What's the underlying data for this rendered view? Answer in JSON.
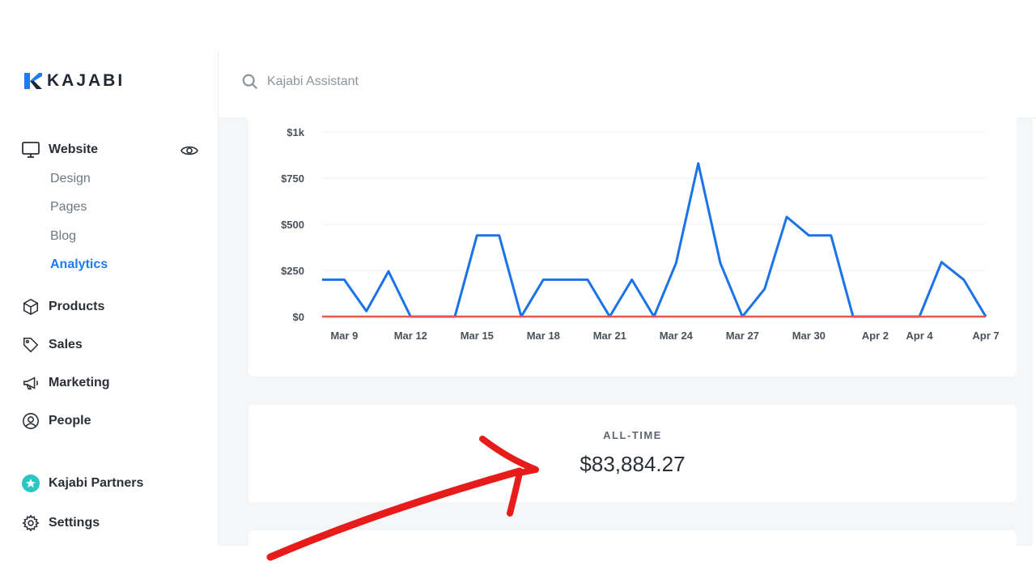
{
  "brand": {
    "name": "KAJABI"
  },
  "search": {
    "placeholder": "Kajabi Assistant"
  },
  "sidebar": {
    "website": {
      "label": "Website",
      "icon": "monitor-icon"
    },
    "website_items": [
      {
        "label": "Design",
        "active": false
      },
      {
        "label": "Pages",
        "active": false
      },
      {
        "label": "Blog",
        "active": false
      },
      {
        "label": "Analytics",
        "active": true
      }
    ],
    "items": [
      {
        "label": "Products",
        "icon": "box-icon"
      },
      {
        "label": "Sales",
        "icon": "tag-icon"
      },
      {
        "label": "Marketing",
        "icon": "megaphone-icon"
      },
      {
        "label": "People",
        "icon": "user-circle-icon"
      }
    ],
    "partners": {
      "label": "Kajabi Partners",
      "icon": "star-badge-icon"
    },
    "settings": {
      "label": "Settings",
      "icon": "gear-icon"
    }
  },
  "colors": {
    "accent": "#1d7cf2",
    "line_primary": "#1a73e8",
    "line_secondary": "#e8574f",
    "annotation": "#e81b1b"
  },
  "chart_data": {
    "type": "line",
    "x": [
      "Mar 8",
      "Mar 9",
      "Mar 10",
      "Mar 11",
      "Mar 12",
      "Mar 13",
      "Mar 14",
      "Mar 15",
      "Mar 16",
      "Mar 17",
      "Mar 18",
      "Mar 19",
      "Mar 20",
      "Mar 21",
      "Mar 22",
      "Mar 23",
      "Mar 24",
      "Mar 25",
      "Mar 26",
      "Mar 27",
      "Mar 28",
      "Mar 29",
      "Mar 30",
      "Mar 31",
      "Apr 1",
      "Apr 2",
      "Apr 3",
      "Apr 4",
      "Apr 5",
      "Apr 6",
      "Apr 7"
    ],
    "tick_labels": [
      "Mar 9",
      "Mar 12",
      "Mar 15",
      "Mar 18",
      "Mar 21",
      "Mar 24",
      "Mar 27",
      "Mar 30",
      "Apr 2",
      "Apr 4",
      "Apr 7"
    ],
    "tick_indices": [
      1,
      4,
      7,
      10,
      13,
      16,
      19,
      22,
      25,
      27,
      30
    ],
    "y_ticks": [
      "$0",
      "$250",
      "$500",
      "$750",
      "$1k"
    ],
    "ylim": [
      0,
      1000
    ],
    "series": [
      {
        "values": [
          200,
          200,
          30,
          245,
          0,
          0,
          0,
          440,
          440,
          0,
          200,
          200,
          200,
          0,
          200,
          0,
          290,
          830,
          290,
          0,
          150,
          540,
          440,
          440,
          0,
          0,
          0,
          0,
          295,
          200,
          0
        ],
        "color": "#1a73e8"
      },
      {
        "values": [
          0,
          0,
          0,
          0,
          0,
          0,
          0,
          0,
          0,
          0,
          0,
          0,
          0,
          0,
          0,
          0,
          0,
          0,
          0,
          0,
          0,
          0,
          0,
          0,
          0,
          0,
          0,
          0,
          0,
          0,
          0
        ],
        "color": "#e8574f"
      }
    ],
    "grid": true
  },
  "alltime": {
    "label": "ALL-TIME",
    "value": "$83,884.27"
  }
}
